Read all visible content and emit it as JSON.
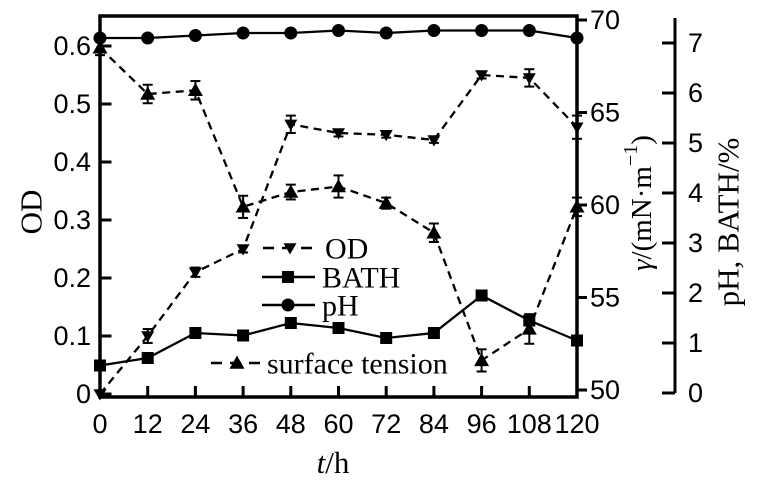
{
  "colors": {
    "ink": "#000000",
    "background": "#ffffff"
  },
  "axes": {
    "x": {
      "title_italic": "t",
      "title_rest": "/h",
      "ticks": [
        "0",
        "12",
        "24",
        "36",
        "48",
        "60",
        "72",
        "84",
        "96",
        "108",
        "120"
      ],
      "range": [
        0,
        120
      ]
    },
    "y_left": {
      "title": "OD",
      "ticks": [
        "0",
        "0.1",
        "0.2",
        "0.3",
        "0.4",
        "0.5",
        "0.6"
      ],
      "range": [
        0,
        0.653
      ]
    },
    "y_right_inner": {
      "title_italic": "γ",
      "title_main": "/(mN·m",
      "title_sup": "−1",
      "title_close": ")",
      "ticks": [
        "50",
        "55",
        "60",
        "65",
        "70"
      ],
      "range": [
        50,
        70.5
      ]
    },
    "y_right_outer": {
      "title": "pH, BATH/%",
      "ticks": [
        "0",
        "1",
        "2",
        "3",
        "4",
        "5",
        "6",
        "7"
      ],
      "range": [
        0,
        7.6
      ]
    }
  },
  "chart_data": {
    "type": "line",
    "xlabel": "t/h",
    "legend_position": "inside-center",
    "grid": false,
    "x": [
      0,
      12,
      24,
      36,
      48,
      60,
      72,
      84,
      96,
      108,
      120
    ],
    "series": [
      {
        "name": "OD",
        "axis": "left",
        "unit": "OD",
        "marker": "triangle-down",
        "line": "dashed",
        "values": [
          0,
          0.1,
          0.21,
          0.25,
          0.465,
          0.45,
          0.447,
          0.438,
          0.55,
          0.545,
          0.46
        ],
        "errors": [
          0,
          0.012,
          0.008,
          0.006,
          0.015,
          0.006,
          0.005,
          0.005,
          0.006,
          0.015,
          0.02
        ]
      },
      {
        "name": "BATH",
        "axis": "right_outer",
        "unit": "%",
        "marker": "square",
        "line": "solid",
        "values": [
          0.55,
          0.7,
          1.2,
          1.15,
          1.4,
          1.3,
          1.1,
          1.2,
          1.95,
          1.45,
          1.05
        ],
        "errors": [
          0,
          0,
          0,
          0,
          0,
          0,
          0,
          0,
          0,
          0,
          0
        ]
      },
      {
        "name": "pH",
        "axis": "right_outer",
        "unit": "pH",
        "marker": "circle",
        "line": "solid",
        "values": [
          7.1,
          7.1,
          7.15,
          7.2,
          7.2,
          7.25,
          7.2,
          7.25,
          7.25,
          7.25,
          7.1
        ],
        "errors": [
          0,
          0,
          0,
          0,
          0,
          0,
          0,
          0,
          0,
          0,
          0
        ]
      },
      {
        "name": "surface tension",
        "axis": "right_inner",
        "unit": "mN/m",
        "marker": "triangle-up",
        "line": "dashed",
        "values": [
          68.5,
          66.0,
          66.2,
          59.9,
          60.7,
          61.0,
          60.1,
          58.5,
          51.6,
          53.3,
          59.9
        ],
        "errors": [
          0.4,
          0.5,
          0.5,
          0.6,
          0.4,
          0.6,
          0.3,
          0.5,
          0.6,
          0.8,
          0.5
        ]
      }
    ]
  }
}
